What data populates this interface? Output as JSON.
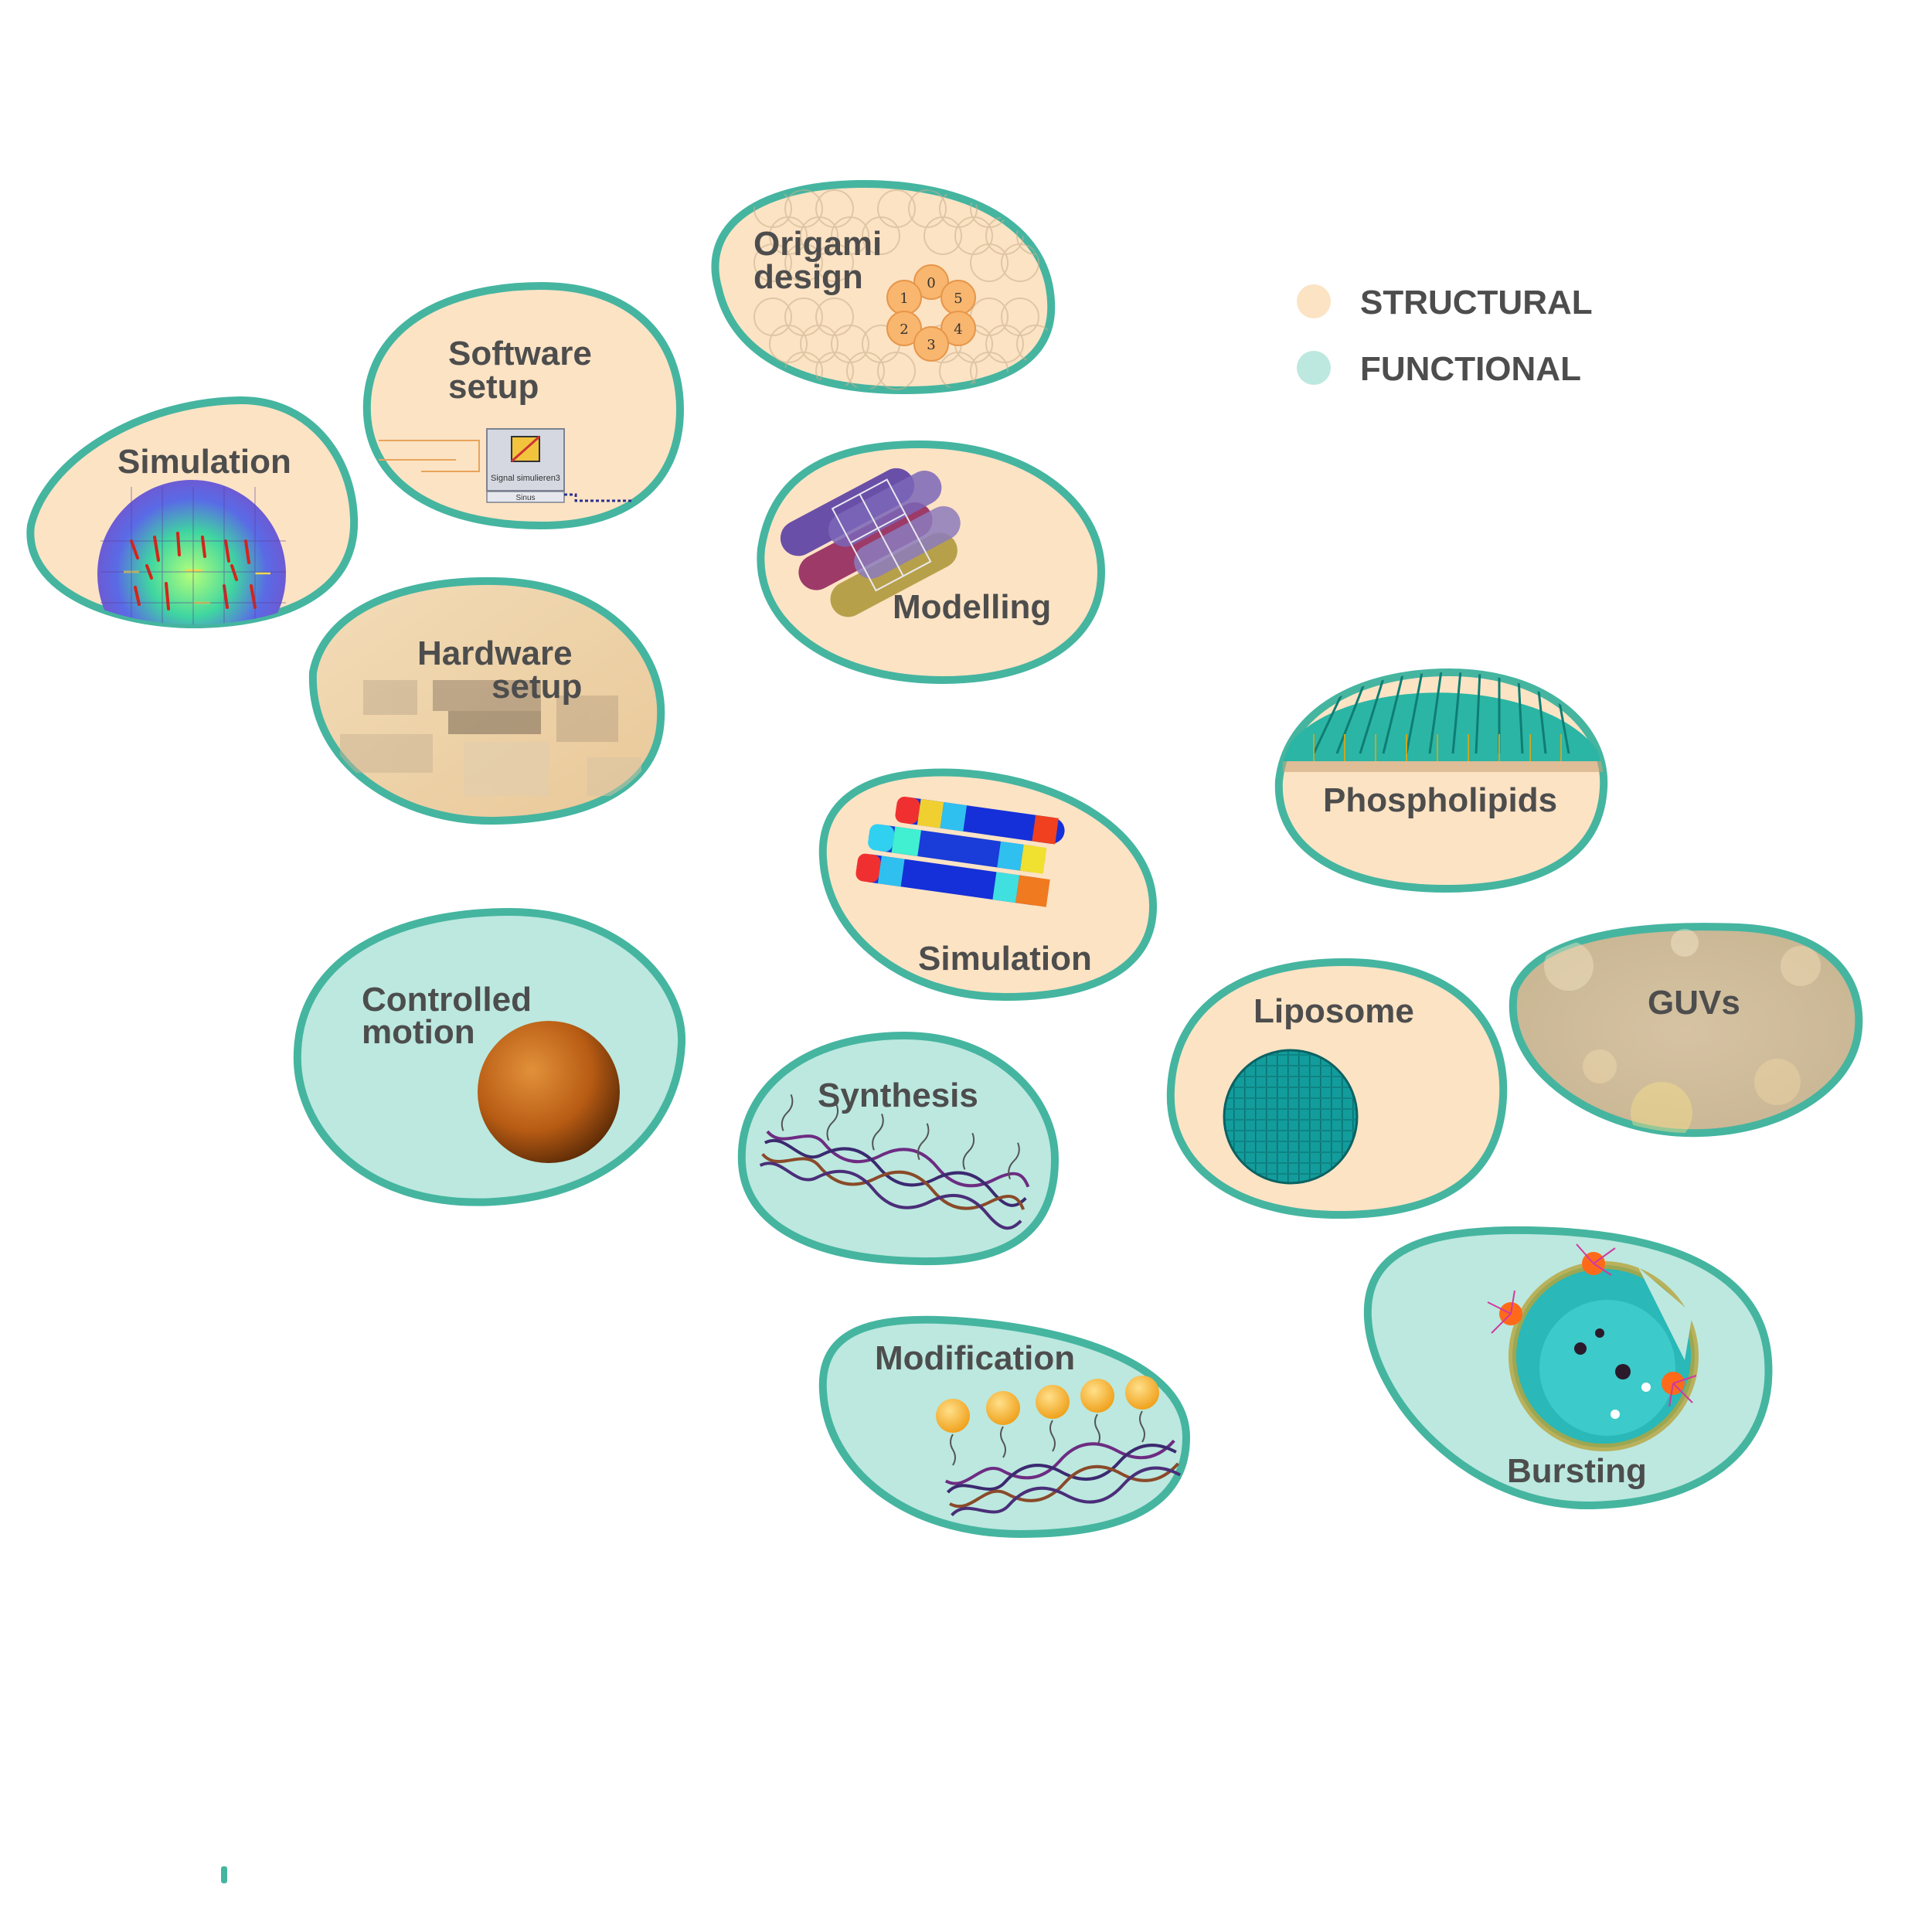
{
  "colors": {
    "structural": "#fce3c4",
    "functional": "#bce8df",
    "outline": "#45b5a0",
    "text": "#4d4d4d"
  },
  "legend": {
    "structural_label": "STRUCTURAL",
    "functional_label": "FUNCTIONAL"
  },
  "nodes": {
    "origami_design": {
      "line1": "Origami",
      "line2": "design",
      "category": "structural",
      "helix_numbers": [
        "0",
        "1",
        "5",
        "2",
        "4",
        "3"
      ]
    },
    "software_setup": {
      "line1": "Software",
      "line2": "setup",
      "category": "structural",
      "block_caption": "Signal simulieren3",
      "block_sub": "Sinus"
    },
    "simulation_heatmap": {
      "label": "Simulation",
      "category": "structural"
    },
    "modelling": {
      "label": "Modelling",
      "category": "structural"
    },
    "hardware_setup": {
      "line1": "Hardware",
      "line2": "setup",
      "category": "structural"
    },
    "phospholipids": {
      "label": "Phospholipids",
      "category": "structural"
    },
    "simulation_bundle": {
      "label": "Simulation",
      "category": "structural"
    },
    "controlled_motion": {
      "line1": "Controlled",
      "line2": "motion",
      "category": "functional"
    },
    "liposome": {
      "label": "Liposome",
      "category": "structural"
    },
    "guvs": {
      "label": "GUVs",
      "category": "functional"
    },
    "synthesis": {
      "label": "Synthesis",
      "category": "functional"
    },
    "modification": {
      "label": "Modification",
      "category": "functional"
    },
    "bursting": {
      "label": "Bursting",
      "category": "functional"
    }
  }
}
